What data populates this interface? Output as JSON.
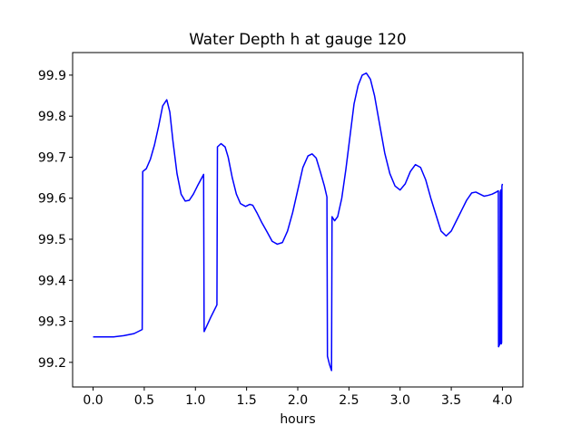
{
  "chart_data": {
    "type": "line",
    "title": "Water Depth h at gauge 120",
    "xlabel": "hours",
    "ylabel": "",
    "xlim": [
      -0.2,
      4.2
    ],
    "ylim": [
      99.14,
      99.955
    ],
    "xticks": [
      0.0,
      0.5,
      1.0,
      1.5,
      2.0,
      2.5,
      3.0,
      3.5,
      4.0
    ],
    "xtick_labels": [
      "0.0",
      "0.5",
      "1.0",
      "1.5",
      "2.0",
      "2.5",
      "3.0",
      "3.5",
      "4.0"
    ],
    "yticks": [
      99.2,
      99.3,
      99.4,
      99.5,
      99.6,
      99.7,
      99.8,
      99.9
    ],
    "ytick_labels": [
      "99.2",
      "99.3",
      "99.4",
      "99.5",
      "99.6",
      "99.7",
      "99.8",
      "99.9"
    ],
    "grid": false,
    "legend": "none",
    "series": [
      {
        "color": "#0000ff",
        "points": [
          [
            0.0,
            99.262
          ],
          [
            0.2,
            99.262
          ],
          [
            0.3,
            99.265
          ],
          [
            0.4,
            99.27
          ],
          [
            0.48,
            99.28
          ],
          [
            0.485,
            99.665
          ],
          [
            0.52,
            99.672
          ],
          [
            0.56,
            99.695
          ],
          [
            0.6,
            99.73
          ],
          [
            0.64,
            99.775
          ],
          [
            0.68,
            99.825
          ],
          [
            0.72,
            99.84
          ],
          [
            0.75,
            99.81
          ],
          [
            0.78,
            99.74
          ],
          [
            0.82,
            99.66
          ],
          [
            0.86,
            99.61
          ],
          [
            0.9,
            99.593
          ],
          [
            0.94,
            99.595
          ],
          [
            0.98,
            99.61
          ],
          [
            1.02,
            99.63
          ],
          [
            1.08,
            99.658
          ],
          [
            1.085,
            99.275
          ],
          [
            1.1,
            99.283
          ],
          [
            1.15,
            99.31
          ],
          [
            1.21,
            99.34
          ],
          [
            1.215,
            99.725
          ],
          [
            1.25,
            99.733
          ],
          [
            1.29,
            99.725
          ],
          [
            1.32,
            99.7
          ],
          [
            1.36,
            99.65
          ],
          [
            1.4,
            99.61
          ],
          [
            1.44,
            99.587
          ],
          [
            1.49,
            99.58
          ],
          [
            1.53,
            99.585
          ],
          [
            1.56,
            99.583
          ],
          [
            1.6,
            99.565
          ],
          [
            1.65,
            99.54
          ],
          [
            1.7,
            99.518
          ],
          [
            1.75,
            99.495
          ],
          [
            1.8,
            99.488
          ],
          [
            1.85,
            99.492
          ],
          [
            1.9,
            99.52
          ],
          [
            1.95,
            99.565
          ],
          [
            2.0,
            99.62
          ],
          [
            2.05,
            99.675
          ],
          [
            2.1,
            99.703
          ],
          [
            2.14,
            99.708
          ],
          [
            2.18,
            99.698
          ],
          [
            2.22,
            99.665
          ],
          [
            2.26,
            99.63
          ],
          [
            2.285,
            99.603
          ],
          [
            2.29,
            99.215
          ],
          [
            2.31,
            99.195
          ],
          [
            2.33,
            99.18
          ],
          [
            2.335,
            99.555
          ],
          [
            2.36,
            99.545
          ],
          [
            2.39,
            99.555
          ],
          [
            2.43,
            99.6
          ],
          [
            2.47,
            99.67
          ],
          [
            2.51,
            99.75
          ],
          [
            2.55,
            99.83
          ],
          [
            2.59,
            99.875
          ],
          [
            2.63,
            99.9
          ],
          [
            2.67,
            99.905
          ],
          [
            2.71,
            99.89
          ],
          [
            2.75,
            99.85
          ],
          [
            2.8,
            99.78
          ],
          [
            2.85,
            99.71
          ],
          [
            2.9,
            99.66
          ],
          [
            2.95,
            99.63
          ],
          [
            3.0,
            99.62
          ],
          [
            3.05,
            99.635
          ],
          [
            3.1,
            99.665
          ],
          [
            3.15,
            99.682
          ],
          [
            3.2,
            99.675
          ],
          [
            3.25,
            99.645
          ],
          [
            3.3,
            99.6
          ],
          [
            3.35,
            99.56
          ],
          [
            3.4,
            99.52
          ],
          [
            3.45,
            99.508
          ],
          [
            3.5,
            99.52
          ],
          [
            3.55,
            99.545
          ],
          [
            3.6,
            99.57
          ],
          [
            3.65,
            99.595
          ],
          [
            3.7,
            99.613
          ],
          [
            3.74,
            99.615
          ],
          [
            3.78,
            99.61
          ],
          [
            3.82,
            99.605
          ],
          [
            3.86,
            99.607
          ],
          [
            3.9,
            99.61
          ],
          [
            3.94,
            99.615
          ],
          [
            3.96,
            99.618
          ],
          [
            3.962,
            99.238
          ],
          [
            3.975,
            99.245
          ],
          [
            3.978,
            99.615
          ],
          [
            3.985,
            99.62
          ],
          [
            3.988,
            99.245
          ],
          [
            3.992,
            99.248
          ],
          [
            3.995,
            99.63
          ],
          [
            4.0,
            99.635
          ]
        ]
      }
    ]
  }
}
